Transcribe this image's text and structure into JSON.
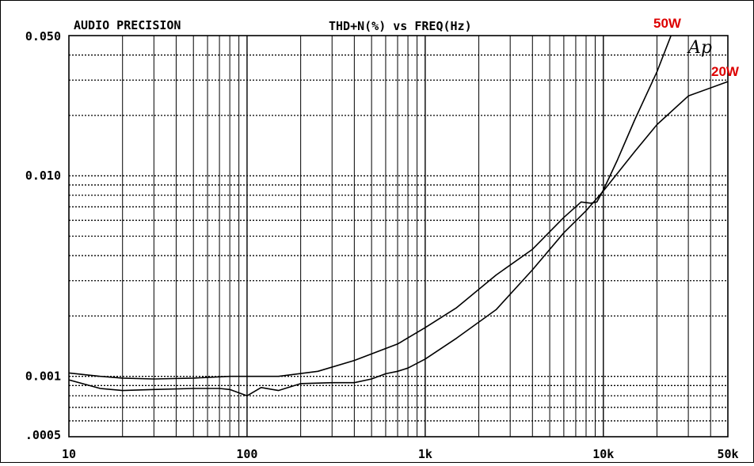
{
  "header": {
    "brand": "AUDIO PRECISION",
    "title": "THD+N(%) vs FREQ(Hz)",
    "logo": "Ap"
  },
  "chart_data": {
    "type": "line",
    "title": "THD+N(%) vs FREQ(Hz)",
    "xscale": "log",
    "yscale": "log",
    "xlim": [
      10,
      50000
    ],
    "ylim": [
      0.0005,
      0.05
    ],
    "grid": true,
    "x_tick_labels": [
      {
        "value": 10,
        "label": "10"
      },
      {
        "value": 100,
        "label": "100"
      },
      {
        "value": 1000,
        "label": "1k"
      },
      {
        "value": 10000,
        "label": "10k"
      },
      {
        "value": 50000,
        "label": "50k"
      }
    ],
    "y_tick_labels": [
      {
        "value": 0.05,
        "label": "0.050"
      },
      {
        "value": 0.01,
        "label": "0.010"
      },
      {
        "value": 0.001,
        "label": "0.001"
      },
      {
        "value": 0.0005,
        "label": ".0005"
      }
    ],
    "series": [
      {
        "name": "50W",
        "color": "#dd0000",
        "x": [
          10,
          15,
          20,
          30,
          50,
          80,
          100,
          150,
          250,
          400,
          700,
          1000,
          1500,
          2500,
          4000,
          6000,
          7500,
          8500,
          9200,
          10000,
          12000,
          15000,
          20000,
          25000
        ],
        "y": [
          0.00104,
          0.001,
          0.00098,
          0.00097,
          0.00098,
          0.001,
          0.001,
          0.001,
          0.00106,
          0.0012,
          0.00145,
          0.00175,
          0.0022,
          0.0032,
          0.0043,
          0.0062,
          0.0074,
          0.0073,
          0.0074,
          0.0085,
          0.012,
          0.019,
          0.033,
          0.055
        ]
      },
      {
        "name": "20W",
        "color": "#dd0000",
        "x": [
          10,
          15,
          20,
          30,
          50,
          70,
          80,
          100,
          120,
          150,
          200,
          300,
          400,
          500,
          600,
          700,
          800,
          1000,
          1500,
          2500,
          4000,
          6000,
          8000,
          10000,
          15000,
          20000,
          30000,
          50000
        ],
        "y": [
          0.00096,
          0.00087,
          0.00085,
          0.00086,
          0.00087,
          0.00087,
          0.00086,
          0.0008,
          0.00088,
          0.00085,
          0.00092,
          0.00093,
          0.00093,
          0.00097,
          0.00103,
          0.00106,
          0.0011,
          0.00122,
          0.00155,
          0.00215,
          0.0034,
          0.0052,
          0.0067,
          0.0084,
          0.0132,
          0.018,
          0.025,
          0.0295
        ]
      }
    ]
  }
}
